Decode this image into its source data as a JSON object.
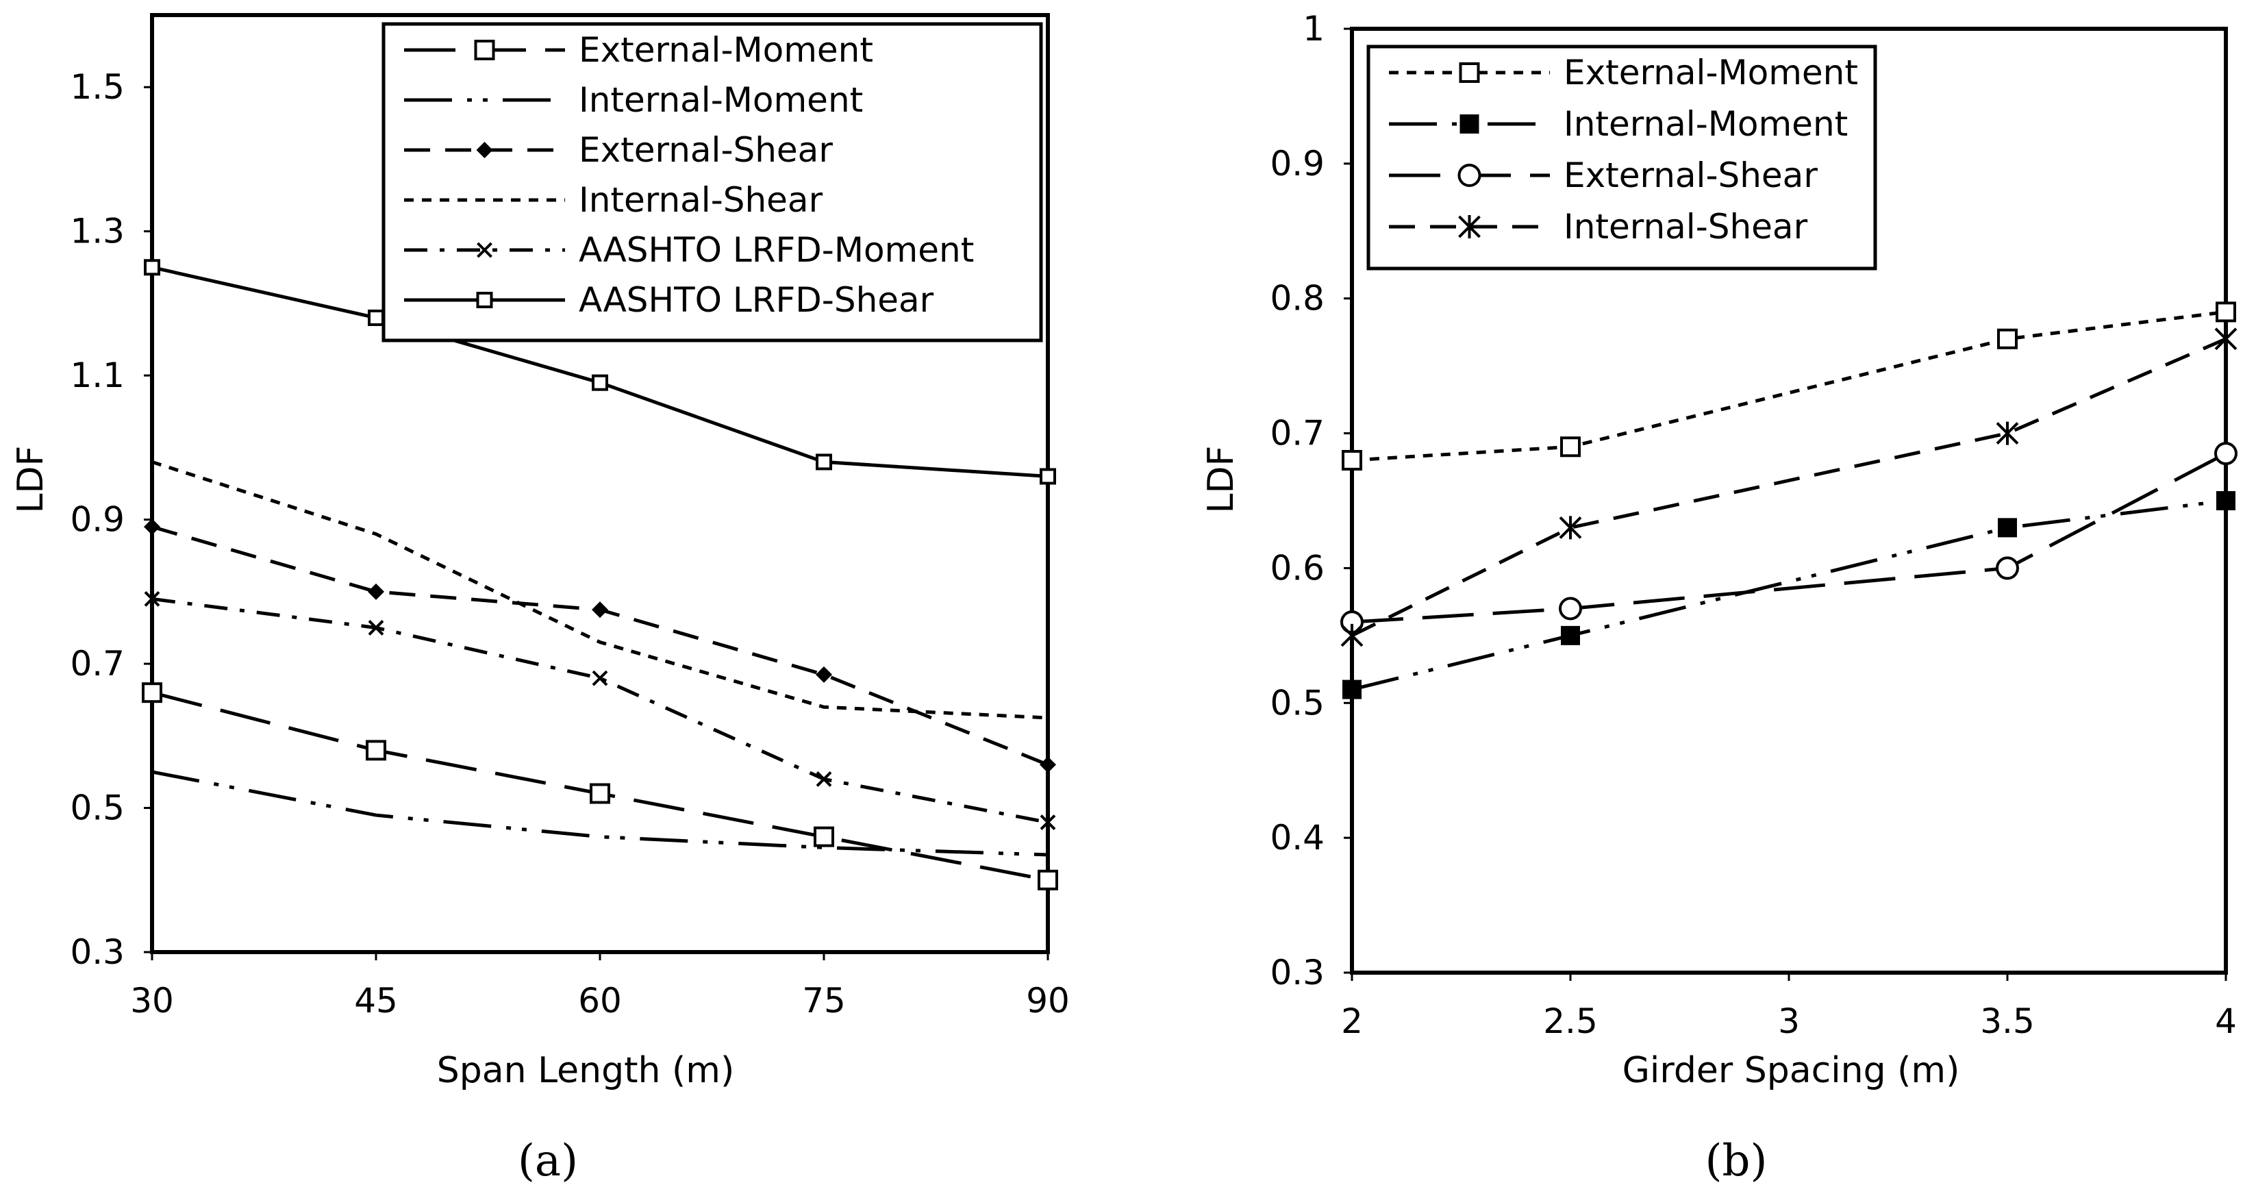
{
  "chart_data": [
    {
      "type": "line",
      "panel_label": "(a)",
      "xlabel": "Span Length (m)",
      "ylabel": "LDF",
      "x": [
        30,
        45,
        60,
        75,
        90
      ],
      "xticks": [
        30,
        45,
        60,
        75,
        90
      ],
      "xlim": [
        30,
        90
      ],
      "ylim": [
        0.3,
        1.6
      ],
      "yticks": [
        0.3,
        0.5,
        0.7,
        0.9,
        1.1,
        1.3,
        1.5
      ],
      "grid": false,
      "legend_position": "top-right",
      "series": [
        {
          "name": "External-Moment",
          "values": [
            0.66,
            0.58,
            0.52,
            0.46,
            0.4
          ],
          "marker": "square-open",
          "dash": "longdash"
        },
        {
          "name": "Internal-Moment",
          "values": [
            0.55,
            0.49,
            0.46,
            0.445,
            0.435
          ],
          "marker": "none",
          "dash": "longdashdotdot"
        },
        {
          "name": "External-Shear",
          "values": [
            0.89,
            0.8,
            0.775,
            0.685,
            0.56
          ],
          "marker": "diamond-filled",
          "dash": "dash"
        },
        {
          "name": "Internal-Shear",
          "values": [
            0.98,
            0.88,
            0.73,
            0.64,
            0.625
          ],
          "marker": "none",
          "dash": "dot"
        },
        {
          "name": "AASHTO LRFD-Moment",
          "values": [
            0.79,
            0.75,
            0.68,
            0.54,
            0.48
          ],
          "marker": "x",
          "dash": "dashdot"
        },
        {
          "name": "AASHTO LRFD-Shear",
          "values": [
            1.25,
            1.18,
            1.09,
            0.98,
            0.96
          ],
          "marker": "square-small",
          "dash": "solid"
        }
      ]
    },
    {
      "type": "line",
      "panel_label": "(b)",
      "xlabel": "Girder Spacing (m)",
      "ylabel": "LDF",
      "x": [
        2,
        2.5,
        3.5,
        4
      ],
      "xticks": [
        2,
        2.5,
        3,
        3.5,
        4
      ],
      "xlim": [
        2,
        4
      ],
      "ylim": [
        0.3,
        1
      ],
      "yticks": [
        0.3,
        0.4,
        0.5,
        0.6,
        0.7,
        0.8,
        0.9,
        1
      ],
      "grid": false,
      "legend_position": "top-left",
      "series": [
        {
          "name": "External-Moment",
          "values": [
            0.68,
            0.69,
            0.77,
            0.79
          ],
          "marker": "square-open",
          "dash": "dot"
        },
        {
          "name": "Internal-Moment",
          "values": [
            0.51,
            0.55,
            0.63,
            0.65
          ],
          "marker": "square-filled",
          "dash": "longdashdotdot"
        },
        {
          "name": "External-Shear",
          "values": [
            0.56,
            0.57,
            0.6,
            0.685
          ],
          "marker": "circle-open",
          "dash": "longdash"
        },
        {
          "name": "Internal-Shear",
          "values": [
            0.55,
            0.63,
            0.7,
            0.77
          ],
          "marker": "asterisk",
          "dash": "dash"
        }
      ]
    }
  ]
}
